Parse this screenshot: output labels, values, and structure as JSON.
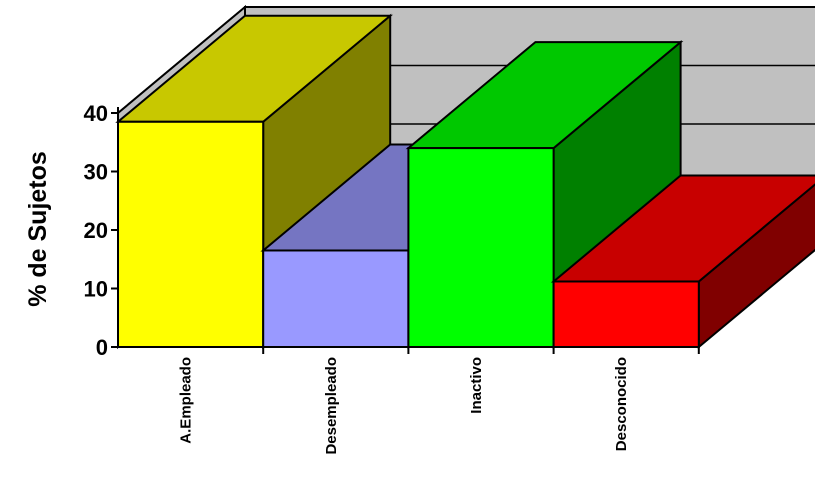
{
  "chart_data": {
    "type": "bar",
    "categories": [
      "A.Empleado",
      "Desempleado",
      "Inactivo",
      "Desconocido"
    ],
    "values": [
      38.5,
      16.5,
      34,
      11.2
    ],
    "ylabel": "% de Sujetos",
    "xlabel": "",
    "ylim": [
      0,
      40
    ],
    "yticks": [
      "0",
      "10",
      "20",
      "30",
      "40"
    ],
    "grid": true,
    "style": "3d",
    "colors": {
      "A.Empleado": {
        "front": "#FFFF00",
        "top": "#C8C800",
        "side": "#808000"
      },
      "Desempleado": {
        "front": "#9999FF",
        "top": "#7575C2",
        "side": "#55558F"
      },
      "Inactivo": {
        "front": "#00FF00",
        "top": "#00C800",
        "side": "#008000"
      },
      "Desconocido": {
        "front": "#FF0000",
        "top": "#C80000",
        "side": "#800000"
      },
      "wall": "#C0C0C0"
    }
  }
}
